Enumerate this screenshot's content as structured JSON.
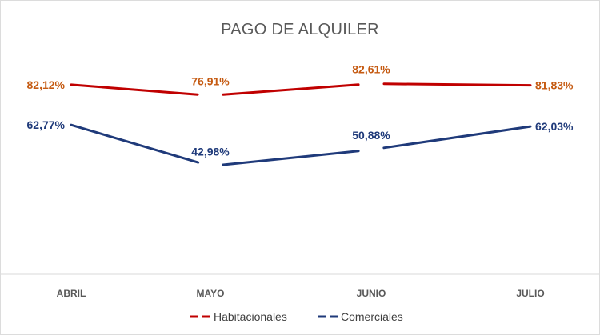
{
  "chart_data": {
    "type": "line",
    "title": "PAGO DE ALQUILER",
    "categories": [
      "ABRIL",
      "MAYO",
      "JUNIO",
      "JULIO"
    ],
    "series": [
      {
        "name": "Habitacionales",
        "color": "#C00000",
        "label_color": "#C55A11",
        "values": [
          82.12,
          76.91,
          82.61,
          81.83
        ],
        "labels": [
          "82,12%",
          "76,91%",
          "82,61%",
          "81,83%"
        ]
      },
      {
        "name": "Comerciales",
        "color": "#1F3A7A",
        "label_color": "#1F3A7A",
        "values": [
          62.77,
          42.98,
          50.88,
          62.03
        ],
        "labels": [
          "62,77%",
          "42,98%",
          "50,88%",
          "62,03%"
        ]
      }
    ],
    "xlabel": "",
    "ylabel": "",
    "ylim": [
      0,
      90
    ],
    "grid": false,
    "legend": "bottom"
  }
}
